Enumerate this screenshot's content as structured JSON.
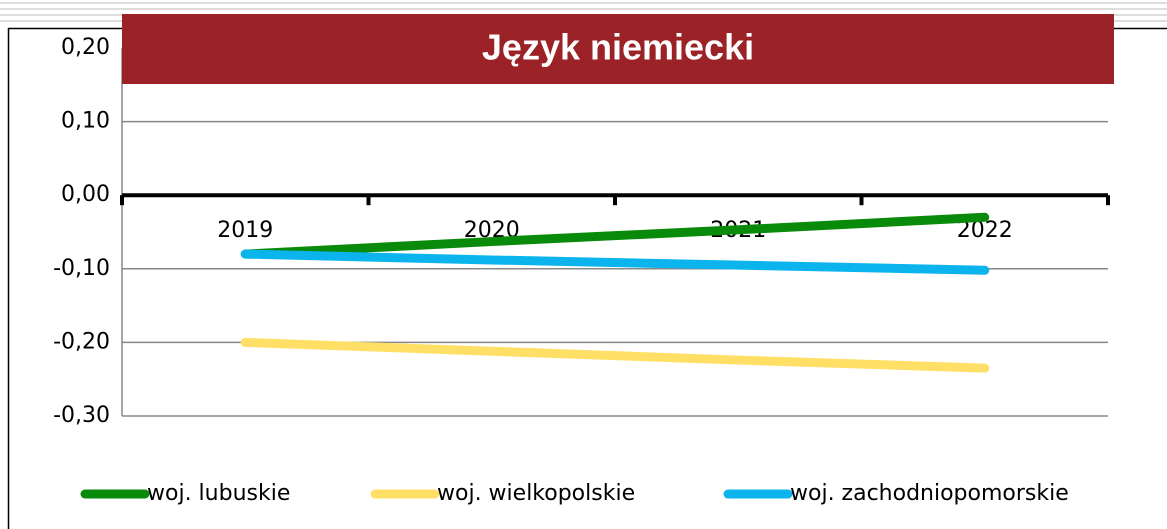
{
  "chart_data": {
    "type": "line",
    "title": "Język niemiecki",
    "categories": [
      "2019",
      "2020",
      "2021",
      "2022"
    ],
    "series": [
      {
        "name": "woj. lubuskie",
        "color": "#0a8a0a",
        "values": [
          -0.08,
          -0.063,
          -0.047,
          -0.03
        ]
      },
      {
        "name": "woj. wielkopolskie",
        "color": "#ffdf66",
        "values": [
          -0.2,
          -0.212,
          -0.224,
          -0.235
        ]
      },
      {
        "name": "woj. zachodniopomorskie",
        "color": "#0cb4ee",
        "values": [
          -0.08,
          -0.088,
          -0.095,
          -0.102
        ]
      }
    ],
    "ylim": [
      -0.3,
      0.2
    ],
    "yticks": [
      {
        "value": -0.3,
        "label": "-0,30"
      },
      {
        "value": -0.2,
        "label": "-0,20"
      },
      {
        "value": -0.1,
        "label": "-0,10"
      },
      {
        "value": 0,
        "label": "0,00"
      },
      {
        "value": 0.1,
        "label": "0,10"
      },
      {
        "value": 0.2,
        "label": "0,20"
      }
    ],
    "grid": true,
    "legend": "bottom"
  }
}
